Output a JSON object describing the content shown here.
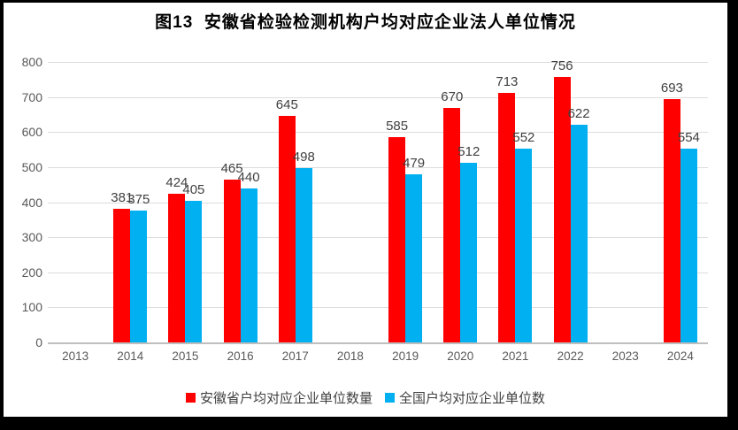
{
  "chart_data": {
    "type": "bar",
    "title": "图13  安徽省检验检测机构户均对应企业法人单位情况",
    "categories": [
      "2013",
      "2014",
      "2015",
      "2016",
      "2017",
      "2018",
      "2019",
      "2020",
      "2021",
      "2022",
      "2023",
      "2024"
    ],
    "series": [
      {
        "name": "安徽省户均对应企业单位数量",
        "color": "#FF0000",
        "values": [
          null,
          381,
          424,
          465,
          645,
          null,
          585,
          670,
          713,
          756,
          null,
          693
        ]
      },
      {
        "name": "全国户均对应企业单位数",
        "color": "#00B0F0",
        "values": [
          null,
          375,
          405,
          440,
          498,
          null,
          479,
          512,
          552,
          622,
          null,
          554
        ]
      }
    ],
    "xlabel": "",
    "ylabel": "",
    "ylim": [
      0,
      800
    ],
    "yticks": [
      0,
      100,
      200,
      300,
      400,
      500,
      600,
      700,
      800
    ],
    "grid": true,
    "legend_position": "bottom",
    "data_labels": true,
    "colors": {
      "grid": "#DCDCDC",
      "axis_line": "#BFBFBF",
      "tick_text": "#595959",
      "value_label_text": "#404040",
      "title_text": "#000000",
      "frame_border": "#000000"
    }
  }
}
